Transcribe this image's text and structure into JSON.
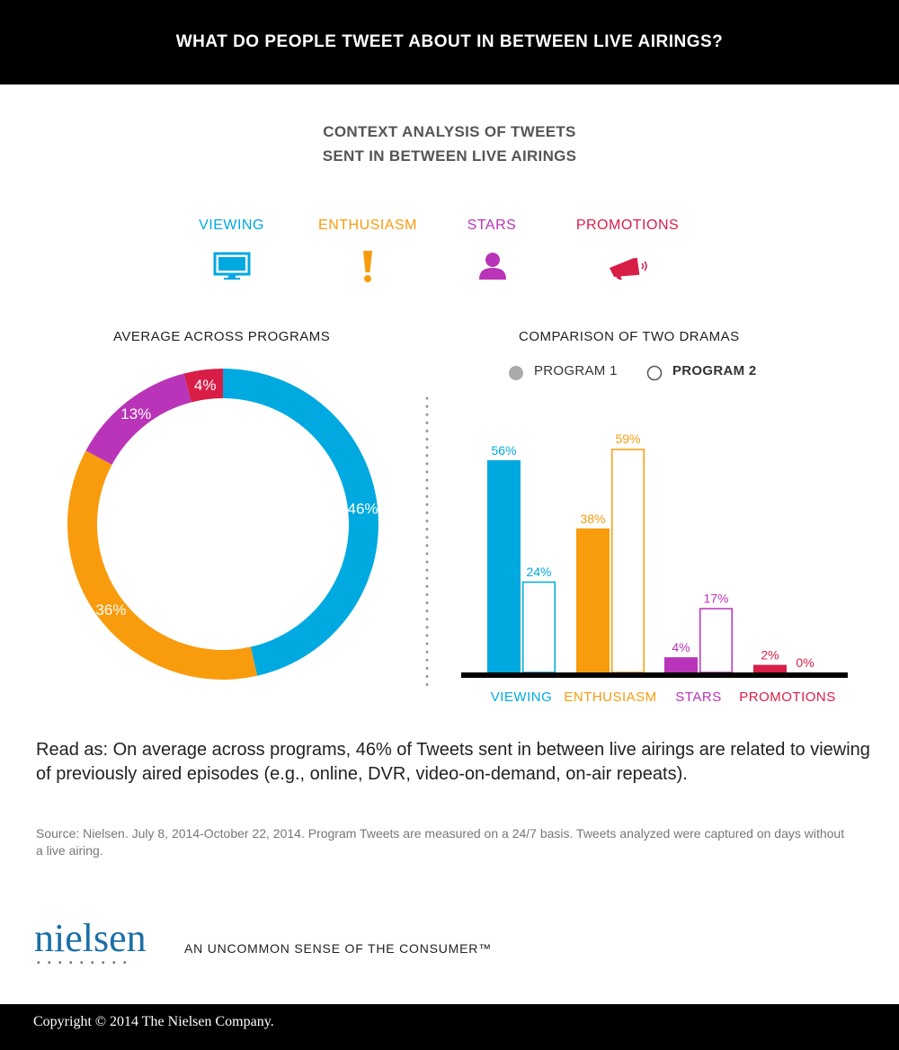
{
  "header": {
    "title": "WHAT DO PEOPLE TWEET ABOUT IN BETWEEN LIVE AIRINGS?"
  },
  "subtitle": {
    "line1": "CONTEXT ANALYSIS OF TWEETS",
    "line2": "SENT IN BETWEEN LIVE AIRINGS"
  },
  "categories": [
    {
      "label": "VIEWING",
      "color": "#00a9e0",
      "icon": "tv-icon"
    },
    {
      "label": "ENTHUSIASM",
      "color": "#f89c0e",
      "icon": "exclamation-icon"
    },
    {
      "label": "STARS",
      "color": "#b934b8",
      "icon": "person-icon"
    },
    {
      "label": "PROMOTIONS",
      "color": "#d81e47",
      "icon": "megaphone-icon"
    }
  ],
  "donut": {
    "title": "AVERAGE ACROSS PROGRAMS"
  },
  "bars": {
    "title": "COMPARISON OF TWO DRAMAS",
    "program1_label": "PROGRAM 1",
    "program2_label": "PROGRAM 2"
  },
  "chart_data": [
    {
      "type": "pie",
      "title": "AVERAGE ACROSS PROGRAMS",
      "categories": [
        "VIEWING",
        "ENTHUSIASM",
        "STARS",
        "PROMOTIONS"
      ],
      "values": [
        46,
        36,
        13,
        4
      ],
      "labels": [
        "46%",
        "36%",
        "13%",
        "4%"
      ]
    },
    {
      "type": "bar",
      "title": "COMPARISON OF TWO DRAMAS",
      "categories": [
        "VIEWING",
        "ENTHUSIASM",
        "STARS",
        "PROMOTIONS"
      ],
      "series": [
        {
          "name": "PROGRAM 1",
          "values": [
            56,
            38,
            4,
            2
          ],
          "labels": [
            "56%",
            "38%",
            "4%",
            "2%"
          ]
        },
        {
          "name": "PROGRAM 2",
          "values": [
            24,
            59,
            17,
            0
          ],
          "labels": [
            "24%",
            "59%",
            "17%",
            "0%"
          ]
        }
      ],
      "ylim": [
        0,
        60
      ]
    }
  ],
  "read_as": "Read as: On average across programs, 46% of Tweets sent in between live airings are related to viewing of previously aired episodes (e.g., online, DVR, video-on-demand, on-air repeats).",
  "source": "Source: Nielsen. July 8, 2014-October 22, 2014. Program Tweets are measured on a 24/7 basis. Tweets analyzed were captured on days without a live airing.",
  "logo": {
    "text": "nielsen",
    "dots": "•••••••••"
  },
  "tagline": "AN UNCOMMON SENSE OF THE CONSUMER™",
  "footer": {
    "copyright": "Copyright © 2014 The Nielsen Company."
  }
}
